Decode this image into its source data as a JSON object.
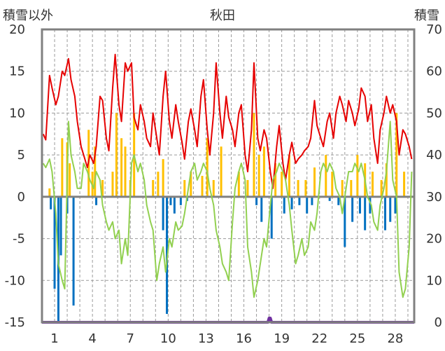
{
  "chart_data": {
    "type": "bar",
    "title": "秋田",
    "y_left_label": "積雪以外",
    "y_right_label": "積雪",
    "y_left_range": [
      -15,
      20
    ],
    "y_left_ticks": [
      "20",
      "15",
      "10",
      "5",
      "0",
      "-5",
      "-10",
      "-15"
    ],
    "y_right_range": [
      0,
      70
    ],
    "y_right_ticks": [
      "70",
      "60",
      "50",
      "40",
      "30",
      "20",
      "10",
      "0"
    ],
    "x_range": [
      0,
      29.5
    ],
    "x_ticks": [
      "1",
      "4",
      "7",
      "10",
      "13",
      "16",
      "19",
      "22",
      "25",
      "28"
    ],
    "x_tick_values": [
      1,
      4,
      7,
      10,
      13,
      16,
      19,
      22,
      25,
      28
    ],
    "grid": true,
    "colors": {
      "max_temp": "#e60000",
      "min_temp": "#92d050",
      "precip_pos": "#ffc000",
      "precip_neg": "#0070c0",
      "snow_depth": "#7030a0",
      "zero_line": "#808080",
      "frame": "#808080"
    },
    "series": [
      {
        "key": "max_temp",
        "axis": "left",
        "kind": "line",
        "x": [
          0.1,
          0.3,
          0.6,
          0.8,
          1.1,
          1.3,
          1.6,
          1.8,
          2.1,
          2.3,
          2.6,
          2.8,
          3.1,
          3.3,
          3.6,
          3.8,
          4.1,
          4.3,
          4.6,
          4.8,
          5.1,
          5.3,
          5.6,
          5.8,
          6.1,
          6.3,
          6.6,
          6.8,
          7.1,
          7.3,
          7.6,
          7.8,
          8.1,
          8.3,
          8.6,
          8.8,
          9.1,
          9.3,
          9.6,
          9.8,
          10.1,
          10.3,
          10.6,
          10.8,
          11.1,
          11.3,
          11.6,
          11.8,
          12.1,
          12.3,
          12.6,
          12.8,
          13.1,
          13.3,
          13.6,
          13.8,
          14.1,
          14.3,
          14.6,
          14.8,
          15.1,
          15.3,
          15.6,
          15.8,
          16.1,
          16.3,
          16.6,
          16.8,
          17.1,
          17.3,
          17.6,
          17.8,
          18.1,
          18.3,
          18.6,
          18.8,
          19.1,
          19.3,
          19.6,
          19.8,
          20.1,
          20.3,
          20.6,
          20.8,
          21.1,
          21.3,
          21.6,
          21.8,
          22.1,
          22.3,
          22.6,
          22.8,
          23.1,
          23.3,
          23.6,
          23.8,
          24.1,
          24.3,
          24.6,
          24.8,
          25.1,
          25.3,
          25.6,
          25.8,
          26.1,
          26.3,
          26.6,
          26.8,
          27.1,
          27.3,
          27.6,
          27.8,
          28.1,
          28.3,
          28.6,
          28.8,
          29.1,
          29.3
        ],
        "y": [
          7.5,
          6.8,
          14.5,
          13.0,
          11.0,
          12.0,
          15.0,
          14.5,
          16.5,
          14.0,
          12.0,
          9.0,
          6.0,
          5.0,
          3.5,
          5.0,
          4.0,
          6.0,
          12.0,
          11.5,
          7.0,
          5.5,
          13.0,
          17.0,
          11.0,
          9.0,
          16.0,
          15.0,
          16.0,
          9.5,
          8.0,
          11.0,
          9.0,
          7.0,
          6.0,
          10.0,
          7.0,
          5.0,
          12.0,
          15.0,
          9.0,
          7.0,
          11.0,
          9.0,
          6.5,
          4.5,
          9.0,
          10.5,
          8.0,
          6.0,
          12.0,
          14.0,
          8.0,
          5.0,
          10.0,
          16.0,
          10.0,
          7.0,
          12.0,
          9.5,
          8.0,
          6.0,
          10.0,
          11.0,
          5.0,
          3.0,
          8.0,
          16.0,
          7.0,
          5.5,
          8.0,
          7.0,
          3.0,
          1.0,
          6.0,
          8.5,
          4.0,
          2.0,
          5.0,
          6.5,
          4.0,
          4.5,
          5.0,
          5.5,
          6.0,
          7.0,
          11.5,
          8.5,
          7.0,
          6.0,
          9.0,
          10.0,
          7.0,
          10.0,
          12.0,
          11.0,
          9.0,
          11.5,
          10.0,
          8.5,
          10.5,
          13.0,
          12.0,
          9.0,
          11.0,
          7.0,
          4.0,
          8.0,
          10.0,
          12.0,
          10.0,
          11.0,
          9.0,
          5.0,
          8.0,
          7.5,
          6.0,
          4.5
        ]
      },
      {
        "key": "min_temp",
        "axis": "left",
        "kind": "line",
        "x": [
          0.1,
          0.3,
          0.6,
          0.8,
          1.1,
          1.3,
          1.6,
          1.8,
          2.1,
          2.3,
          2.6,
          2.8,
          3.1,
          3.3,
          3.6,
          3.8,
          4.1,
          4.3,
          4.6,
          4.8,
          5.1,
          5.3,
          5.6,
          5.8,
          6.1,
          6.3,
          6.6,
          6.8,
          7.1,
          7.3,
          7.6,
          7.8,
          8.1,
          8.3,
          8.6,
          8.8,
          9.1,
          9.3,
          9.6,
          9.8,
          10.1,
          10.3,
          10.6,
          10.8,
          11.1,
          11.3,
          11.6,
          11.8,
          12.1,
          12.3,
          12.6,
          12.8,
          13.1,
          13.3,
          13.6,
          13.8,
          14.1,
          14.3,
          14.6,
          14.8,
          15.1,
          15.3,
          15.6,
          15.8,
          16.1,
          16.3,
          16.6,
          16.8,
          17.1,
          17.3,
          17.6,
          17.8,
          18.1,
          18.3,
          18.6,
          18.8,
          19.1,
          19.3,
          19.6,
          19.8,
          20.1,
          20.3,
          20.6,
          20.8,
          21.1,
          21.3,
          21.6,
          21.8,
          22.1,
          22.3,
          22.6,
          22.8,
          23.1,
          23.3,
          23.6,
          23.8,
          24.1,
          24.3,
          24.6,
          24.8,
          25.1,
          25.3,
          25.6,
          25.8,
          26.1,
          26.3,
          26.6,
          26.8,
          27.1,
          27.3,
          27.6,
          27.8,
          28.1,
          28.3,
          28.6,
          28.8,
          29.1,
          29.3
        ],
        "y": [
          4.0,
          3.5,
          4.5,
          3.0,
          -2.0,
          -8.0,
          -10.0,
          -11.0,
          9.0,
          5.0,
          3.0,
          1.0,
          1.0,
          4.0,
          3.0,
          2.0,
          1.0,
          3.0,
          2.0,
          -1.0,
          -3.0,
          -4.0,
          -3.0,
          -5.0,
          -4.0,
          -8.0,
          -5.0,
          -7.0,
          4.0,
          5.0,
          3.0,
          4.0,
          2.0,
          -1.0,
          -3.0,
          -4.0,
          -10.0,
          -8.0,
          -6.0,
          -9.0,
          -5.0,
          -6.0,
          -3.0,
          -4.0,
          -3.5,
          -2.0,
          1.0,
          3.0,
          4.0,
          2.0,
          3.0,
          4.0,
          3.0,
          1.0,
          -1.0,
          -4.0,
          -6.0,
          -8.0,
          -9.0,
          -10.0,
          -3.0,
          1.0,
          3.0,
          4.0,
          2.0,
          -6.0,
          -9.0,
          -12.0,
          -10.0,
          -8.0,
          -5.0,
          -6.0,
          -1.0,
          2.0,
          3.0,
          4.0,
          3.0,
          2.0,
          -1.0,
          -4.0,
          -8.0,
          -7.0,
          -5.0,
          -7.0,
          -6.0,
          -3.0,
          -4.0,
          -2.0,
          3.0,
          4.0,
          3.0,
          4.0,
          3.0,
          1.0,
          0.0,
          -2.0,
          1.0,
          3.0,
          3.0,
          4.0,
          3.0,
          4.0,
          2.0,
          0.0,
          -1.0,
          -3.0,
          -4.0,
          -1.0,
          1.0,
          3.0,
          9.0,
          2.0,
          0.0,
          -9.0,
          -12.0,
          -11.0,
          -6.0,
          3.0
        ]
      },
      {
        "key": "precip",
        "axis": "left",
        "kind": "bar",
        "x": [
          0.6,
          1.6,
          2.0,
          2.2,
          3.7,
          4.0,
          4.2,
          4.8,
          5.6,
          5.9,
          6.3,
          6.6,
          7.0,
          7.3,
          8.8,
          9.2,
          9.6,
          11.3,
          11.8,
          12.7,
          13.1,
          13.6,
          14.2,
          15.6,
          16.3,
          16.8,
          17.2,
          17.6,
          18.5,
          19.0,
          19.6,
          20.3,
          20.9,
          21.6,
          22.5,
          23.0,
          23.8,
          24.5,
          25.0,
          25.6,
          26.2,
          26.9,
          27.3,
          28.1,
          28.7
        ],
        "y": [
          1.0,
          7.0,
          6.5,
          4.0,
          8.0,
          3.0,
          6.0,
          2.0,
          3.0,
          10.0,
          7.0,
          6.0,
          2.0,
          10.0,
          2.0,
          3.0,
          4.5,
          2.0,
          3.0,
          2.5,
          7.0,
          2.0,
          6.0,
          3.0,
          2.0,
          10.0,
          5.0,
          6.0,
          4.0,
          3.0,
          5.0,
          2.0,
          2.0,
          3.5,
          5.0,
          3.0,
          2.0,
          2.0,
          5.0,
          4.0,
          3.0,
          2.0,
          4.0,
          10.0,
          3.0
        ]
      },
      {
        "key": "precip_neg",
        "axis": "left",
        "kind": "bar",
        "x": [
          0.7,
          1.0,
          1.3,
          1.5,
          2.0,
          2.5,
          4.3,
          9.6,
          9.9,
          10.2,
          10.5,
          11.0,
          11.5,
          17.0,
          17.4,
          18.2,
          19.2,
          19.8,
          20.4,
          21.0,
          21.4,
          22.8,
          23.5,
          24.0,
          24.6,
          25.2,
          25.6,
          26.0,
          27.2,
          27.6,
          28.0
        ],
        "y": [
          -1.5,
          -11.0,
          -15.0,
          -7.0,
          -2.0,
          -13.0,
          -1.0,
          -4.0,
          -14.0,
          -1.0,
          -2.0,
          -1.0,
          -0.5,
          -1.0,
          -3.0,
          -5.0,
          -2.0,
          -1.5,
          -1.0,
          -2.0,
          -1.0,
          -0.5,
          -1.0,
          -6.0,
          -3.0,
          -2.0,
          -4.0,
          -2.0,
          -4.0,
          -3.0,
          -2.0
        ]
      },
      {
        "key": "snow_depth",
        "axis": "right",
        "kind": "line",
        "x": [
          0,
          17.9,
          18.0,
          18.1,
          18.2,
          29.5
        ],
        "y": [
          0,
          0,
          1,
          1,
          0,
          0
        ]
      }
    ]
  }
}
